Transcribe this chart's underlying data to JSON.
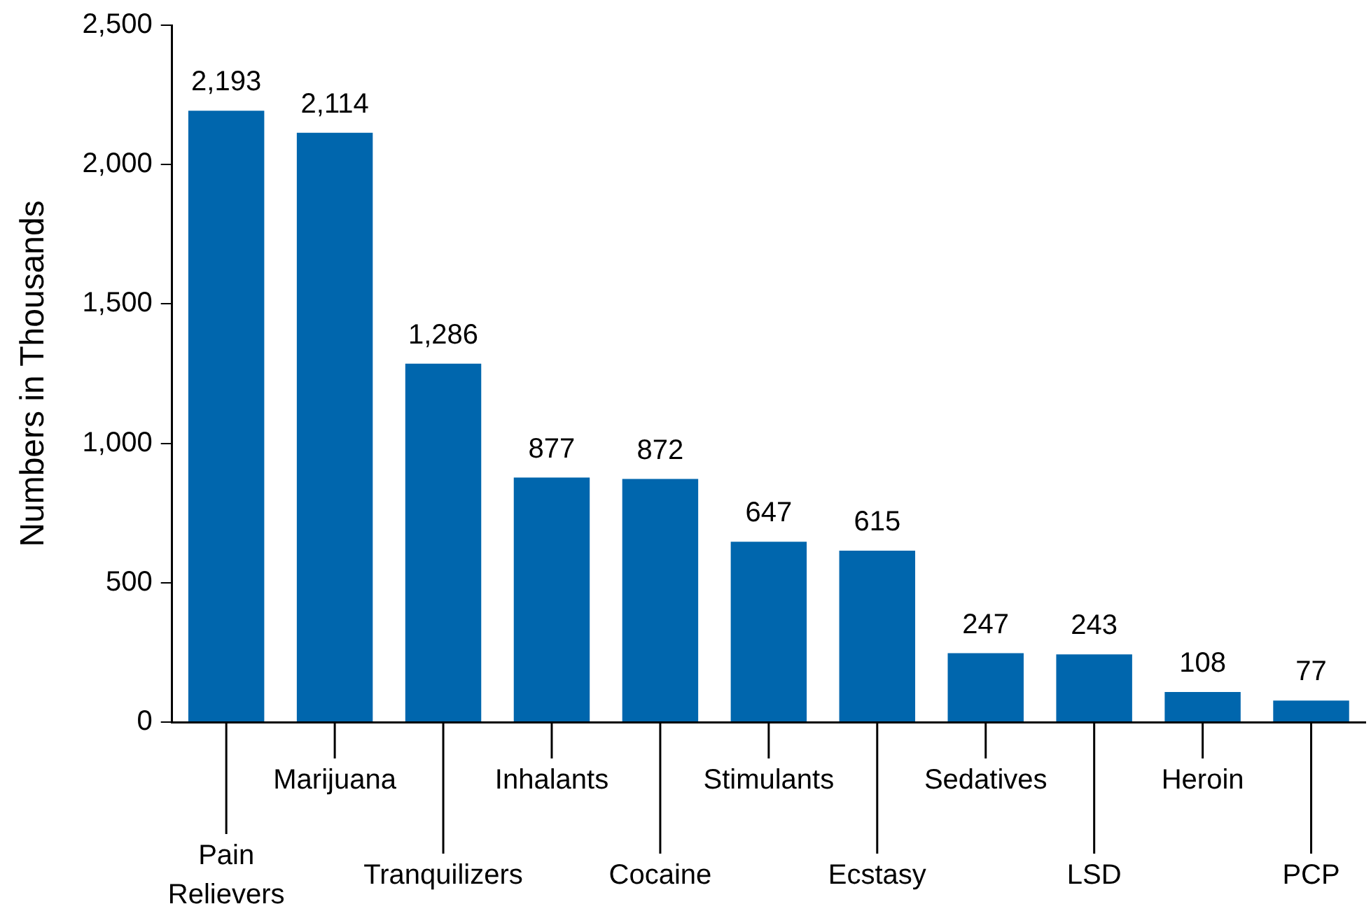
{
  "chart_data": {
    "type": "bar",
    "ylabel": "Numbers in Thousands",
    "categories": [
      "Pain Relievers",
      "Marijuana",
      "Tranquilizers",
      "Inhalants",
      "Cocaine",
      "Stimulants",
      "Ecstasy",
      "Sedatives",
      "LSD",
      "Heroin",
      "PCP"
    ],
    "values": [
      2193,
      2114,
      1286,
      877,
      872,
      647,
      615,
      247,
      243,
      108,
      77
    ],
    "value_labels": [
      "2,193",
      "2,114",
      "1,286",
      "877",
      "872",
      "647",
      "615",
      "247",
      "243",
      "108",
      "77"
    ],
    "color": "#0066ad",
    "ylim": [
      0,
      2500
    ],
    "yticks": [
      0,
      500,
      {
        "value": 1000,
        "label": "1,000"
      },
      {
        "value": 1500,
        "label": "1,500"
      },
      {
        "value": 2000,
        "label": "2,000"
      },
      {
        "value": 2500,
        "label": "2,500"
      }
    ],
    "grid": false,
    "legend": false
  }
}
